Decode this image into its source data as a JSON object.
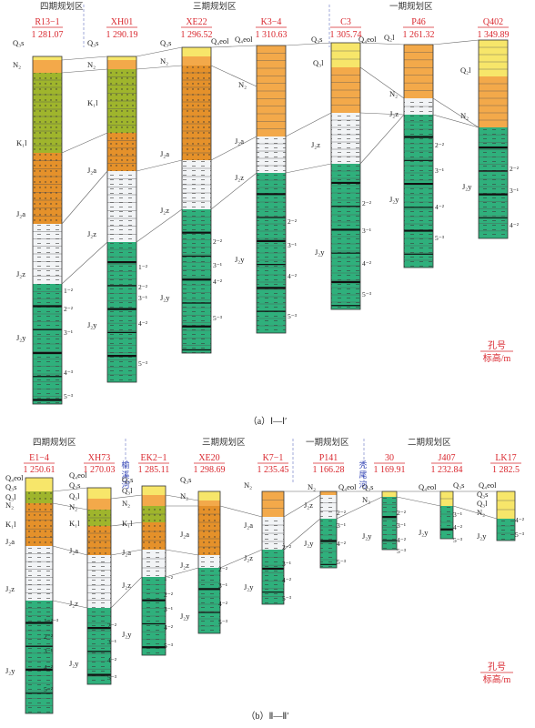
{
  "colors": {
    "Q": "#f7e66a",
    "N2": "#f3a94a",
    "K1l": "#9fb52c",
    "J2a": "#e5912a",
    "J2z": "#f2f4f6",
    "J2y": "#2fb07c",
    "outline": "#333333",
    "label_red": "#d9272e",
    "river_blue": "#3a4bb8"
  },
  "section_a": {
    "caption": "（a）Ⅰ—Ⅰ′",
    "zones": [
      "四期规划区",
      "三期规划区",
      "一期规划区"
    ],
    "legend": {
      "top": "孔号",
      "bottom": "标高/m"
    },
    "boreholes": [
      {
        "id": "R13−1",
        "elev": "1 281.07"
      },
      {
        "id": "XH01",
        "elev": "1 290.19"
      },
      {
        "id": "XE22",
        "elev": "1 296.52"
      },
      {
        "id": "K3−4",
        "elev": "1 310.63"
      },
      {
        "id": "C3",
        "elev": "1 305.74"
      },
      {
        "id": "P46",
        "elev": "1 261.32"
      },
      {
        "id": "Q402",
        "elev": "1 349.89"
      }
    ],
    "labels": [
      "Q₃s",
      "N₂",
      "K₁l",
      "J₂a",
      "J₂z",
      "J₂y",
      "Q₃s",
      "N₂",
      "K₁l",
      "J₂a",
      "J₂z",
      "J₂y",
      "Q₃s",
      "Q₄eol",
      "N₂",
      "J₂a",
      "J₂z",
      "J₂y",
      "Q₄eol",
      "N₂",
      "J₂a",
      "J₂z",
      "J₂y",
      "Q₃s",
      "Q₄eol",
      "Q₃l",
      "J₂z",
      "J₂y",
      "Q₂l",
      "N₂",
      "J₂z",
      "J₂y",
      "Q₂l",
      "N₂",
      "J₂y"
    ],
    "sublabels": [
      "1⁻²",
      "2⁻²",
      "3⁻¹",
      "4⁻³",
      "5⁻³",
      "1⁻²",
      "2⁻²",
      "3⁻¹",
      "4⁻²",
      "5⁻³",
      "2⁻²",
      "3⁻¹",
      "4⁻²",
      "5⁻³",
      "2⁻²",
      "3⁻¹",
      "4⁻²",
      "5⁻³",
      "2⁻²",
      "3⁻¹",
      "4⁻²",
      "5⁻³",
      "2⁻²",
      "3⁻¹",
      "4⁻²",
      "5⁻³",
      "2⁻²",
      "3⁻¹",
      "4⁻²"
    ]
  },
  "section_b": {
    "caption": "（b）Ⅱ—Ⅱ′",
    "zones": [
      "四期规划区",
      "三期规划区",
      "一期规划区",
      "二期规划区"
    ],
    "rivers": [
      "榆溪河",
      "秃尾河"
    ],
    "legend": {
      "top": "孔号",
      "bottom": "标高/m"
    },
    "boreholes": [
      {
        "id": "E1−4",
        "elev": "1 250.61"
      },
      {
        "id": "XH73",
        "elev": "1 270.03"
      },
      {
        "id": "EK2−1",
        "elev": "1 285.11"
      },
      {
        "id": "XE20",
        "elev": "1 298.69"
      },
      {
        "id": "K7−1",
        "elev": "1 235.45"
      },
      {
        "id": "P141",
        "elev": "1 166.28"
      },
      {
        "id": "30",
        "elev": "1 169.91"
      },
      {
        "id": "J407",
        "elev": "1 232.84"
      },
      {
        "id": "LK17",
        "elev": "1 282.5"
      }
    ],
    "labels": [
      "Q₄eol",
      "Q₃s",
      "Q₃l",
      "N₂",
      "K₁l",
      "J₂a",
      "J₂z",
      "J₂y",
      "Q₄eol",
      "Q₃s",
      "Q₃l",
      "N₂",
      "K₁l",
      "J₂a",
      "J₂z",
      "J₂y",
      "Q₃s",
      "Q₃l",
      "N₂",
      "K₁l",
      "J₂a",
      "J₂z",
      "J₂y",
      "Q₃s",
      "N₂",
      "J₂a",
      "J₂z",
      "J₂y",
      "N₂",
      "J₂a",
      "J₂z",
      "J₂y",
      "N₂",
      "Q₄eol",
      "J₂z",
      "J₂y",
      "Q₃s",
      "N₂",
      "J₂y",
      "Q₄eol",
      "Q₃s",
      "J₂y",
      "Q₄eol",
      "Q₃s",
      "Q₃l",
      "N₂",
      "J₂y"
    ],
    "sublabels": [
      "1⁻²⁻³",
      "2⁻²",
      "3⁻¹",
      "4⁻²",
      "5⁻²",
      "2⁻²",
      "3⁻¹",
      "4⁻²",
      "5⁻³",
      "1⁻²",
      "2⁻²",
      "3⁻¹",
      "4⁻²",
      "5⁻³",
      "2⁻²",
      "3⁻¹",
      "4⁻²",
      "5⁻³",
      "2⁻²",
      "3⁻¹",
      "4⁻²",
      "5⁻³",
      "2⁻²",
      "3⁻¹",
      "4⁻²",
      "5⁻³",
      "2⁻²",
      "3⁻¹",
      "4⁻²",
      "5⁻³",
      "3⁻¹",
      "4⁻²",
      "5⁻³",
      "4⁻²",
      "5⁻³"
    ]
  }
}
